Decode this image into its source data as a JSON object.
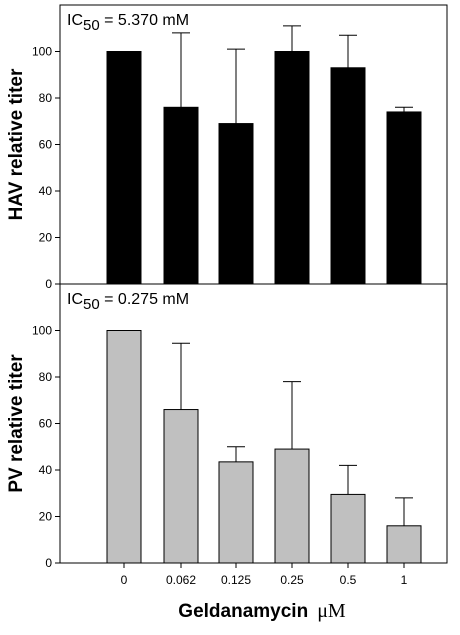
{
  "chart_data": [
    {
      "type": "bar",
      "categories": [
        "0",
        "0.062",
        "0.125",
        "0.25",
        "0.5",
        "1"
      ],
      "values": [
        100,
        76,
        69,
        100,
        93,
        74
      ],
      "errors": [
        0,
        32,
        32,
        11,
        14,
        2
      ],
      "ylabel": "HAV relative titer",
      "ylim": [
        0,
        120
      ],
      "yticks": [
        0,
        20,
        40,
        60,
        80,
        100
      ],
      "annotation": {
        "prefix": "IC",
        "sub": "50",
        "rest": " = 5.370 mM"
      },
      "bar_color": "#000000"
    },
    {
      "type": "bar",
      "categories": [
        "0",
        "0.062",
        "0.125",
        "0.25",
        "0.5",
        "1"
      ],
      "values": [
        100,
        66,
        43.5,
        49,
        29.5,
        16
      ],
      "errors": [
        0,
        28.5,
        6.5,
        29,
        12.5,
        12
      ],
      "ylabel": "PV relative titer",
      "ylim": [
        0,
        120
      ],
      "yticks": [
        0,
        20,
        40,
        60,
        80,
        100
      ],
      "annotation": {
        "prefix": "IC",
        "sub": "50",
        "rest": " = 0.275 mM"
      },
      "bar_color": "#c0c0c0"
    }
  ],
  "xaxis": {
    "tick_labels": [
      "0",
      "0.062",
      "0.125",
      "0.25",
      "0.5",
      "1"
    ],
    "title_text": "Geldanamycin",
    "title_unit": "μM"
  }
}
